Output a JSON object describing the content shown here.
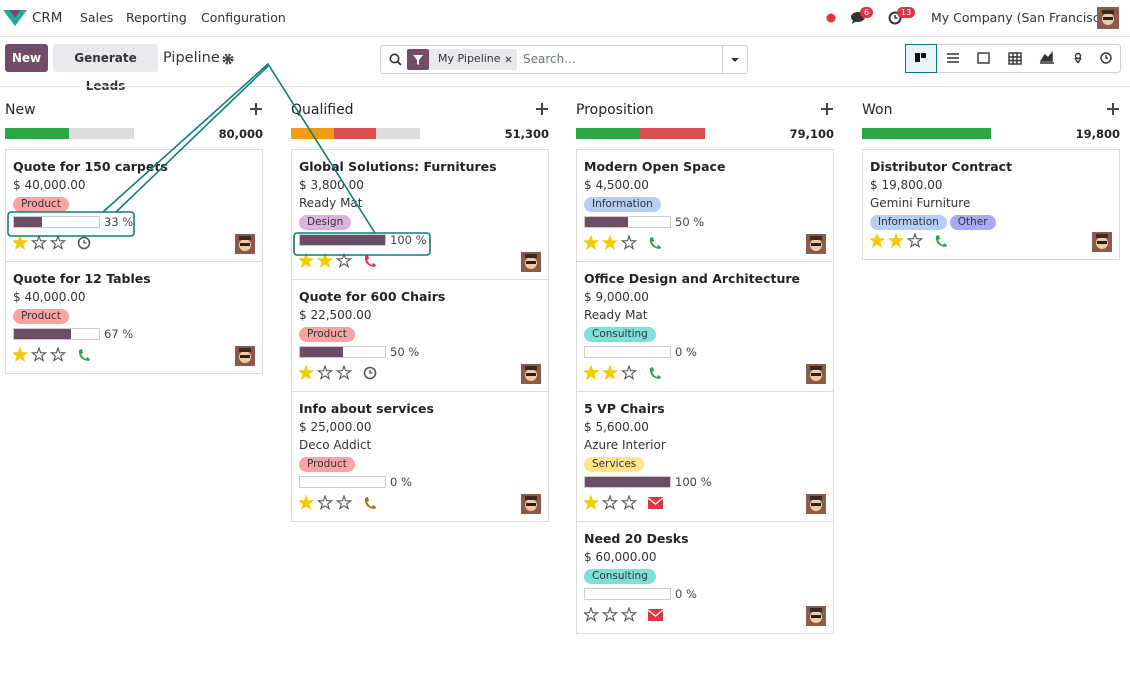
{
  "navbar": {
    "app": "CRM",
    "menus": [
      "Sales",
      "Reporting",
      "Configuration"
    ],
    "messages_badge": "6",
    "activities_badge": "13",
    "company": "My Company (San Francisco)"
  },
  "control": {
    "new": "New",
    "generate": "Generate Leads",
    "breadcrumb": "Pipeline",
    "facet": "My Pipeline",
    "search_placeholder": "Search..."
  },
  "columns": [
    {
      "name": "New",
      "total": "80,000",
      "cards": [
        {
          "title": "Quote for 150 carpets",
          "amount": "$ 40,000.00",
          "tags": [
            {
              "name": "Product",
              "color": "#f9a3a3"
            }
          ],
          "progress": 33,
          "progress_label": "33 %",
          "priority": 1,
          "activity": {
            "icon": "clock",
            "color": "#555555"
          }
        },
        {
          "title": "Quote for 12 Tables",
          "amount": "$ 40,000.00",
          "tags": [
            {
              "name": "Product",
              "color": "#f9a3a3"
            }
          ],
          "progress": 67,
          "progress_label": "67 %",
          "priority": 1,
          "activity": {
            "icon": "phone",
            "color": "#28a745"
          }
        }
      ]
    },
    {
      "name": "Qualified",
      "total": "51,300",
      "cards": [
        {
          "title": "Global Solutions: Furnitures",
          "amount": "$ 3,800.00",
          "company": "Ready Mat",
          "tags": [
            {
              "name": "Design",
              "color": "#dcb3dc"
            }
          ],
          "progress": 100,
          "progress_label": "100 %",
          "priority": 2,
          "activity": {
            "icon": "phone",
            "color": "#dc3545"
          }
        },
        {
          "title": "Quote for 600 Chairs",
          "amount": "$ 22,500.00",
          "tags": [
            {
              "name": "Product",
              "color": "#f9a3a3"
            }
          ],
          "progress": 50,
          "progress_label": "50 %",
          "priority": 1,
          "activity": {
            "icon": "clock",
            "color": "#555555"
          }
        },
        {
          "title": "Info about services",
          "amount": "$ 25,000.00",
          "company": "Deco Addict",
          "tags": [
            {
              "name": "Product",
              "color": "#f9a3a3"
            }
          ],
          "progress": 0,
          "progress_label": "0 %",
          "priority": 1,
          "activity": {
            "icon": "phone",
            "color": "#a0720a"
          }
        }
      ]
    },
    {
      "name": "Proposition",
      "total": "79,100",
      "cards": [
        {
          "title": "Modern Open Space",
          "amount": "$ 4,500.00",
          "tags": [
            {
              "name": "Information",
              "color": "#b7cdf4"
            }
          ],
          "progress": 50,
          "progress_label": "50 %",
          "priority": 2,
          "activity": {
            "icon": "phone",
            "color": "#28a745"
          }
        },
        {
          "title": "Office Design and Architecture",
          "amount": "$ 9,000.00",
          "company": "Ready Mat",
          "tags": [
            {
              "name": "Consulting",
              "color": "#7fe0d9"
            }
          ],
          "progress": 0,
          "progress_label": "0 %",
          "priority": 2,
          "activity": {
            "icon": "phone",
            "color": "#28a745"
          }
        },
        {
          "title": "5 VP Chairs",
          "amount": "$ 5,600.00",
          "company": "Azure Interior",
          "tags": [
            {
              "name": "Services",
              "color": "#fde68a"
            }
          ],
          "progress": 100,
          "progress_label": "100 %",
          "priority": 1,
          "activity": {
            "icon": "envelope",
            "color": "#dc3545"
          }
        },
        {
          "title": "Need 20 Desks",
          "amount": "$ 60,000.00",
          "tags": [
            {
              "name": "Consulting",
              "color": "#7fe0d9"
            }
          ],
          "progress": 0,
          "progress_label": "0 %",
          "priority": 0,
          "activity": {
            "icon": "envelope",
            "color": "#dc3545"
          }
        }
      ]
    },
    {
      "name": "Won",
      "total": "19,800",
      "cards": [
        {
          "title": "Distributor Contract",
          "amount": "$ 19,800.00",
          "company": "Gemini Furniture",
          "tags": [
            {
              "name": "Information",
              "color": "#b7cdf4"
            },
            {
              "name": "Other",
              "color": "#a9a9f5"
            }
          ],
          "priority": 2,
          "activity": {
            "icon": "phone",
            "color": "#28a745"
          }
        }
      ]
    }
  ]
}
